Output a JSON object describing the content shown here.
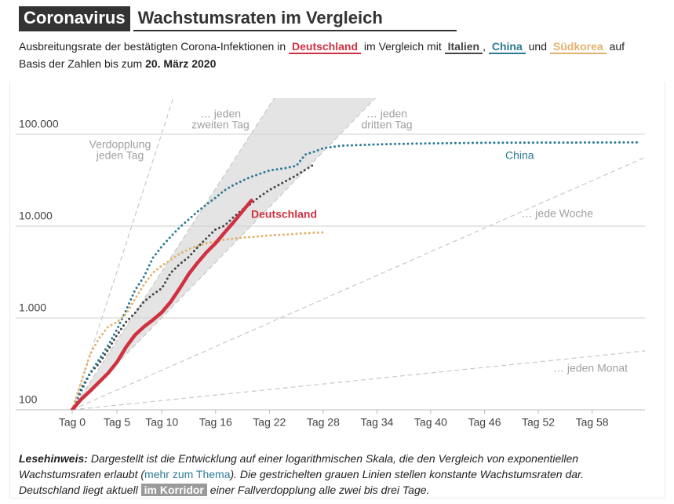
{
  "title": {
    "highlight": "Coronavirus",
    "main": "Wachstumsraten im Vergleich"
  },
  "subtitle": [
    "Ausbreitungsrate der bestätigten Corona-Infektionen in",
    "im Vergleich mit",
    ",",
    "und",
    "auf",
    "Basis der Zahlen bis zum",
    "20. März 2020"
  ],
  "chart_data": {
    "type": "line",
    "log_scale": true,
    "grid": true,
    "xlim": [
      -6.3,
      63.9
    ],
    "ylim": [
      100,
      247000
    ],
    "xticks": [
      {
        "value": 0,
        "label": "Tag 0"
      },
      {
        "value": 5,
        "label": "Tag 5"
      },
      {
        "value": 10,
        "label": "Tag 10"
      },
      {
        "value": 16,
        "label": "Tag 16"
      },
      {
        "value": 22,
        "label": "Tag 22"
      },
      {
        "value": 28,
        "label": "Tag 28"
      },
      {
        "value": 34,
        "label": "Tag 34"
      },
      {
        "value": 40,
        "label": "Tag 40"
      },
      {
        "value": 46,
        "label": "Tag 46"
      },
      {
        "value": 52,
        "label": "Tag 52"
      },
      {
        "value": 58,
        "label": "Tag 58"
      }
    ],
    "yticks": [
      100,
      {
        "value": 1000,
        "label": "1.000"
      },
      {
        "value": 10000,
        "label": "10.000"
      },
      {
        "value": 100000,
        "label": "100.000"
      }
    ],
    "reference_lines": [
      {
        "label": [
          "Verdopplung",
          "jeden Tag"
        ],
        "doubling_days": 1
      },
      {
        "label": [
          "… jeden",
          "zweiten Tag"
        ],
        "doubling_days": 2
      },
      {
        "label": [
          "… jeden",
          "dritten Tag"
        ],
        "doubling_days": 3
      },
      {
        "label": [
          "… jede Woche"
        ],
        "doubling_days": 7
      },
      {
        "label": [
          "… jeden Monat"
        ],
        "doubling_days": 30
      }
    ],
    "corridor": {
      "from_doubling_days": 2,
      "to_doubling_days": 3,
      "color": "#e4e4e4"
    },
    "series": [
      {
        "name": "Deutschland",
        "color": "#cf3141",
        "line_style": "solid",
        "x": [
          0,
          1,
          2,
          3,
          4,
          5,
          6,
          7,
          8,
          9,
          10,
          11,
          12,
          13,
          14,
          15,
          16,
          17,
          18,
          19,
          20
        ],
        "values": [
          100,
          130,
          160,
          200,
          250,
          330,
          480,
          650,
          800,
          950,
          1150,
          1500,
          2100,
          3000,
          4000,
          5200,
          6500,
          8500,
          11000,
          14500,
          19000
        ]
      },
      {
        "name": "Italien",
        "color": "#444444",
        "line_style": "dotted",
        "x": [
          0,
          1,
          2,
          3,
          4,
          5,
          6,
          7,
          8,
          9,
          10,
          11,
          12,
          13,
          14,
          15,
          16,
          17,
          18,
          19,
          20,
          21,
          22,
          23,
          24,
          25,
          26,
          27
        ],
        "values": [
          100,
          170,
          250,
          320,
          450,
          650,
          900,
          1130,
          1500,
          1800,
          2100,
          3100,
          3850,
          4600,
          5900,
          7400,
          9200,
          10100,
          12500,
          15100,
          17700,
          21200,
          24700,
          27900,
          31500,
          35700,
          41000,
          47000
        ]
      },
      {
        "name": "China",
        "color": "#2b7a97",
        "line_style": "dotted",
        "x": [
          0,
          2,
          4,
          5,
          6,
          7,
          8,
          9,
          10,
          11,
          12,
          13,
          14,
          15,
          16,
          17,
          18,
          19,
          20,
          22,
          24,
          25,
          26,
          27,
          28,
          30,
          35,
          40,
          45,
          50,
          55,
          60,
          63
        ],
        "values": [
          100,
          250,
          500,
          750,
          1200,
          2000,
          2800,
          4500,
          6000,
          7700,
          9700,
          11800,
          14400,
          17200,
          20400,
          24500,
          28000,
          31200,
          34500,
          40200,
          43100,
          45200,
          60000,
          64500,
          70500,
          75000,
          78000,
          79500,
          80500,
          80900,
          81100,
          81300,
          81500
        ]
      },
      {
        "name": "Südkorea",
        "color": "#e2b26c",
        "line_style": "dotted",
        "x": [
          0,
          1,
          2,
          3,
          4,
          5,
          6,
          7,
          8,
          9,
          10,
          11,
          12,
          13,
          14,
          15,
          16,
          17,
          18,
          19,
          20,
          21,
          22,
          23,
          24,
          25,
          26,
          27,
          28
        ],
        "values": [
          100,
          200,
          400,
          600,
          800,
          900,
          1100,
          1600,
          2300,
          3100,
          3700,
          4300,
          5000,
          5600,
          6100,
          6500,
          6800,
          7100,
          7300,
          7500,
          7600,
          7750,
          7900,
          8000,
          8100,
          8250,
          8350,
          8450,
          8550
        ]
      }
    ]
  },
  "footnote": {
    "label": "Lesehinweis:",
    "text1": "Dargestellt ist die Entwicklung auf einer logarithmischen Skala, die den Vergleich von exponentiellen Wachstumsraten erlaubt (",
    "link": "mehr zum Thema",
    "text2": "). Die gestrichelten grauen Linien stellen konstante Wachstumsraten dar. Deutschland liegt aktuell",
    "highlight": "im Korridor",
    "text3": "einer Fallverdopplung alle zwei bis drei Tage."
  }
}
